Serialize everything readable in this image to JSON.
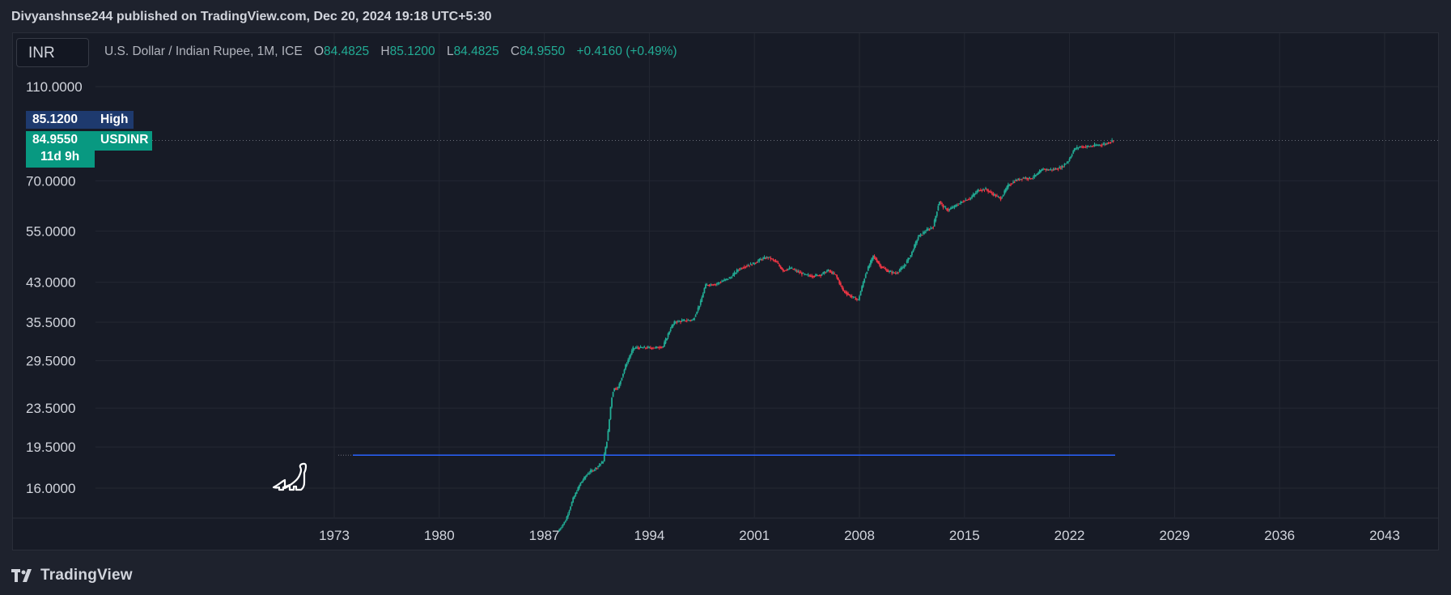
{
  "header": {
    "published_line": "Divyanshnse244 published on TradingView.com, Dec 20, 2024 19:18 UTC+5:30"
  },
  "symbol_box": {
    "text": "INR"
  },
  "legend": {
    "title": "U.S. Dollar / Indian Rupee, 1M, ICE",
    "open_label": "O",
    "open_value": "84.4825",
    "high_label": "H",
    "high_value": "85.1200",
    "low_label": "L",
    "low_value": "84.4825",
    "close_label": "C",
    "close_value": "84.9550",
    "change": "+0.4160 (+0.49%)"
  },
  "price_tags": {
    "high_value": "85.1200",
    "high_label": "High",
    "last_value": "84.9550",
    "last_label": "USDINR",
    "countdown": "11d 9h"
  },
  "footer": {
    "brand": "TradingView"
  },
  "colors": {
    "background": "#1e222d",
    "panel": "#171b26",
    "grid": "#242833",
    "up": "#22ab94",
    "down": "#f23645",
    "hline": "#2962ff",
    "high_tag": "#1e3a6e",
    "last_tag": "#089981"
  },
  "chart_data": {
    "type": "candlestick",
    "scale": "log",
    "y_ticks": [
      "110.0000",
      "70.0000",
      "55.0000",
      "43.0000",
      "35.5000",
      "29.5000",
      "23.5000",
      "19.5000",
      "16.0000"
    ],
    "y_tick_values": [
      110,
      70,
      55,
      43,
      35.5,
      29.5,
      23.5,
      19.5,
      16
    ],
    "x_ticks": [
      "1973",
      "1980",
      "1987",
      "1994",
      "2001",
      "2008",
      "2015",
      "2022",
      "2029",
      "2036",
      "2043"
    ],
    "x_tick_values": [
      1973,
      1980,
      1987,
      1994,
      2001,
      2008,
      2015,
      2022,
      2029,
      2036,
      2043
    ],
    "horizontal_line": 18.75,
    "current_price": 84.955,
    "series": [
      {
        "x": [
          1988.0,
          1988.5,
          1989.0,
          1989.5,
          1990.0,
          1990.5,
          1991.0,
          1991.3,
          1991.55,
          1991.7,
          1992.0,
          1992.5,
          1993.0,
          1993.2,
          1993.5,
          1994.0,
          1994.5,
          1995.0,
          1995.5,
          1995.8,
          1996.0,
          1996.5,
          1997.0,
          1997.5,
          1997.8,
          1998.0,
          1998.5,
          1999.0,
          1999.5,
          2000.0,
          2000.5,
          2001.0,
          2001.5,
          2002.0,
          2002.5,
          2003.0,
          2003.5,
          2004.0,
          2004.5,
          2005.0,
          2005.5,
          2006.0,
          2006.5,
          2007.0,
          2007.5,
          2008.0,
          2008.5,
          2009.0,
          2009.5,
          2010.0,
          2010.5,
          2011.0,
          2011.5,
          2012.0,
          2012.5,
          2013.0,
          2013.4,
          2013.7,
          2014.0,
          2014.5,
          2015.0,
          2015.5,
          2016.0,
          2016.5,
          2017.0,
          2017.5,
          2018.0,
          2018.5,
          2018.8,
          2019.0,
          2019.5,
          2020.0,
          2020.3,
          2020.6,
          2021.0,
          2021.5,
          2022.0,
          2022.4,
          2022.8,
          2023.0,
          2023.5,
          2024.0,
          2024.5,
          2024.95
        ],
        "y": [
          13.0,
          13.7,
          15.2,
          16.4,
          17.2,
          17.6,
          18.2,
          20.5,
          24.5,
          25.8,
          25.9,
          28.8,
          31.3,
          31.4,
          31.4,
          31.4,
          31.4,
          31.6,
          34.5,
          35.6,
          35.6,
          35.8,
          35.9,
          39.1,
          42.3,
          42.5,
          42.6,
          43.3,
          44.0,
          45.7,
          46.5,
          47.0,
          48.0,
          48.5,
          47.5,
          45.5,
          46.0,
          45.2,
          44.5,
          44.3,
          44.6,
          45.5,
          44.5,
          41.3,
          40.2,
          39.5,
          44.8,
          48.8,
          46.4,
          45.3,
          44.9,
          46.2,
          49.0,
          53.5,
          55.0,
          56.2,
          63.5,
          61.6,
          60.8,
          62.1,
          63.5,
          64.5,
          66.9,
          67.2,
          65.6,
          64.3,
          68.5,
          70.1,
          70.6,
          71.0,
          70.8,
          72.4,
          74.2,
          73.8,
          73.9,
          74.5,
          77.0,
          81.5,
          82.5,
          82.4,
          82.6,
          83.1,
          83.6,
          84.955
        ]
      }
    ]
  }
}
